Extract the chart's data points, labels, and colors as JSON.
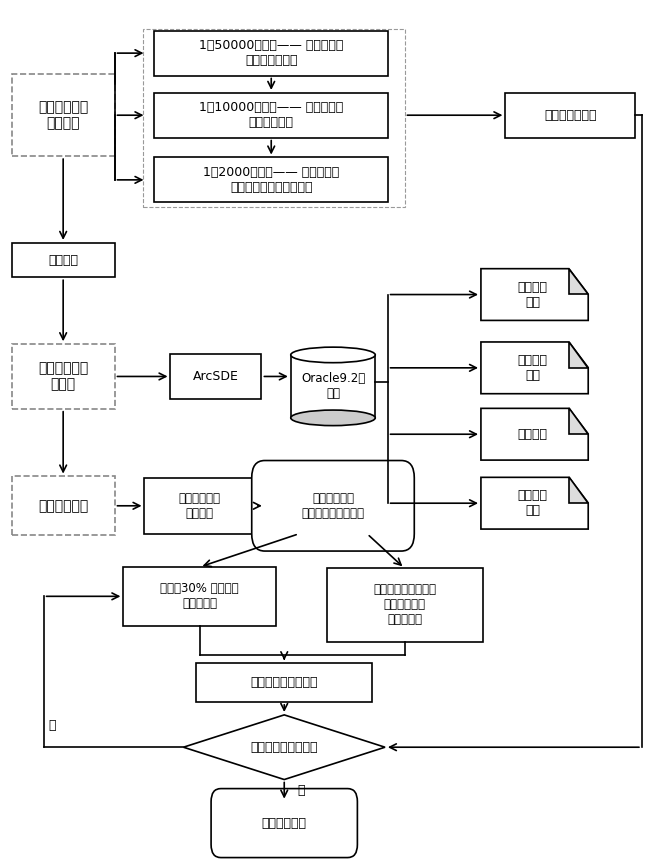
{
  "bg_color": "#ffffff",
  "box_edge": "#000000",
  "box_fill": "#ffffff",
  "lw": 1.2,
  "fs": 9,
  "map50_text": "1：50000地形图—— 多年冻土区\n各地质类型分布",
  "map10_text": "1：10000地形图—— 多年冻土区\n地质灾害分布",
  "map2k_text": "1：2000地形图—— 多年冻土区\n详细地质及已有工程分布",
  "screen_text": "筛选公路线位\n布设区域",
  "risk_text": "建立危险度模型",
  "dataimport_text": "数据入库",
  "geodb_text": "建立地理信息\n数据库",
  "arcsde_text": "ArcSDE",
  "oracle_text": "Oracle9.2数\n据库",
  "topo_text": "现状地形\n数据",
  "geodisaster_text": "地质灾害\n数据",
  "plan_text": "规划数据",
  "ortho_text": "正射影像\n数据",
  "iteropt_text": "迭代优化运算",
  "roadmodel_text": "建立公路路线\n平面模型",
  "initparam_text": "参数初始化，\n计算初始种群适应度",
  "elite_text": "保留前30% 精英个体\n加入下一代",
  "particle_text": "粒子群优化剩余部分\n最佳位置个体\n加入下一代",
  "recalc_text": "重新计算个体适应度",
  "hazard_text": "危险度是否满足要求",
  "output_text": "公路线位输出",
  "yes_text": "是",
  "no_text": "否"
}
